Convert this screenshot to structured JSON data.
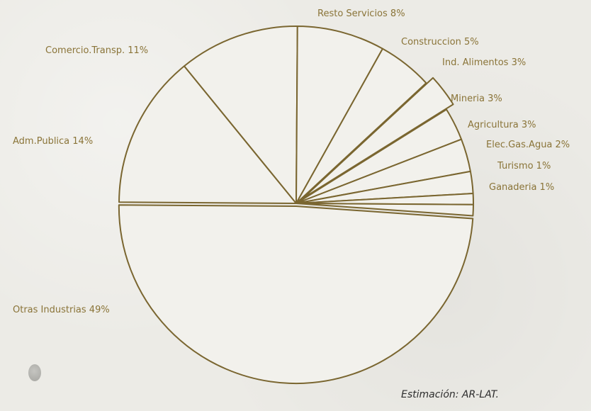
{
  "chart_data": {
    "type": "pie",
    "title": "",
    "source_note": "Estimación: AR-LAT.",
    "start_angle_deg": 4,
    "slices": [
      {
        "label": "Otras Industrias 49%",
        "name": "Otras Industrias",
        "value": 49,
        "explode": 4
      },
      {
        "label": "Adm.Publica 14%",
        "name": "Adm.Publica",
        "value": 14,
        "explode": 0
      },
      {
        "label": "Comercio.Transp. 11%",
        "name": "Comercio.Transp.",
        "value": 11,
        "explode": 0
      },
      {
        "label": "Resto Servicios 8%",
        "name": "Resto Servicios",
        "value": 8,
        "explode": 0
      },
      {
        "label": "Construccion 5%",
        "name": "Construccion",
        "value": 5,
        "explode": 0
      },
      {
        "label": "Ind. Alimentos 3%",
        "name": "Ind. Alimentos",
        "value": 3,
        "explode": 12
      },
      {
        "label": "Mineria 3%",
        "name": "Mineria",
        "value": 3,
        "explode": 0
      },
      {
        "label": "Agricultura 3%",
        "name": "Agricultura",
        "value": 3,
        "explode": 0
      },
      {
        "label": "Elec.Gas.Agua 2%",
        "name": "Elec.Gas.Agua",
        "value": 2,
        "explode": 0
      },
      {
        "label": "Turismo 1%",
        "name": "Turismo",
        "value": 1,
        "explode": 0
      },
      {
        "label": "Ganaderia 1%",
        "name": "Ganaderia",
        "value": 1,
        "explode": 0
      }
    ],
    "colors": {
      "stroke": "#7a6630",
      "fill": "#f2f1ec",
      "label": "#8a7438"
    }
  }
}
